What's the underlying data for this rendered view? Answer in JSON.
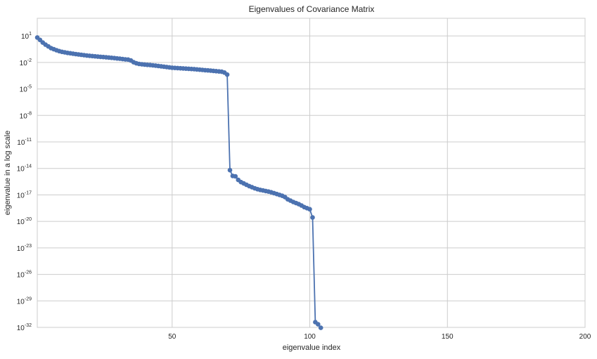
{
  "chart_data": {
    "type": "line",
    "title": "Eigenvalues of Covariance Matrix",
    "xlabel": "eigenvalue index",
    "ylabel": "eigenvalue in a log scale",
    "xlim": [
      1,
      200
    ],
    "ylim_exp": [
      -32,
      3
    ],
    "yscale": "log",
    "grid": true,
    "x_ticks": [
      50,
      100,
      150,
      200
    ],
    "y_ticks": [
      {
        "base": "10",
        "exp": "1",
        "value": 1
      },
      {
        "base": "10",
        "exp": "-2",
        "value": -2
      },
      {
        "base": "10",
        "exp": "-5",
        "value": -5
      },
      {
        "base": "10",
        "exp": "-8",
        "value": -8
      },
      {
        "base": "10",
        "exp": "-11",
        "value": -11
      },
      {
        "base": "10",
        "exp": "-14",
        "value": -14
      },
      {
        "base": "10",
        "exp": "-17",
        "value": -17
      },
      {
        "base": "10",
        "exp": "-20",
        "value": -20
      },
      {
        "base": "10",
        "exp": "-23",
        "value": -23
      },
      {
        "base": "10",
        "exp": "-26",
        "value": -26
      },
      {
        "base": "10",
        "exp": "-29",
        "value": -29
      },
      {
        "base": "10",
        "exp": "-32",
        "value": -32
      }
    ],
    "series": [
      {
        "color": "#4c72b0",
        "marker": "circle",
        "log10_values": [
          0.82,
          0.55,
          0.25,
          0.02,
          -0.18,
          -0.38,
          -0.5,
          -0.62,
          -0.72,
          -0.8,
          -0.86,
          -0.92,
          -0.96,
          -1.01,
          -1.06,
          -1.1,
          -1.14,
          -1.18,
          -1.22,
          -1.25,
          -1.28,
          -1.31,
          -1.34,
          -1.37,
          -1.39,
          -1.42,
          -1.45,
          -1.48,
          -1.51,
          -1.55,
          -1.57,
          -1.62,
          -1.66,
          -1.68,
          -1.78,
          -1.98,
          -2.1,
          -2.17,
          -2.21,
          -2.24,
          -2.27,
          -2.3,
          -2.33,
          -2.36,
          -2.4,
          -2.44,
          -2.48,
          -2.52,
          -2.56,
          -2.6,
          -2.62,
          -2.64,
          -2.66,
          -2.68,
          -2.7,
          -2.72,
          -2.74,
          -2.76,
          -2.79,
          -2.82,
          -2.85,
          -2.88,
          -2.9,
          -2.93,
          -2.96,
          -2.99,
          -3.02,
          -3.05,
          -3.15,
          -3.38,
          -14.2,
          -14.85,
          -14.9,
          -15.3,
          -15.55,
          -15.7,
          -15.85,
          -16.0,
          -16.12,
          -16.25,
          -16.35,
          -16.43,
          -16.5,
          -16.56,
          -16.62,
          -16.7,
          -16.8,
          -16.9,
          -17.0,
          -17.1,
          -17.25,
          -17.5,
          -17.65,
          -17.8,
          -17.92,
          -18.05,
          -18.2,
          -18.38,
          -18.5,
          -18.62,
          -19.55,
          -31.4,
          -31.65,
          -32.05
        ]
      }
    ]
  }
}
